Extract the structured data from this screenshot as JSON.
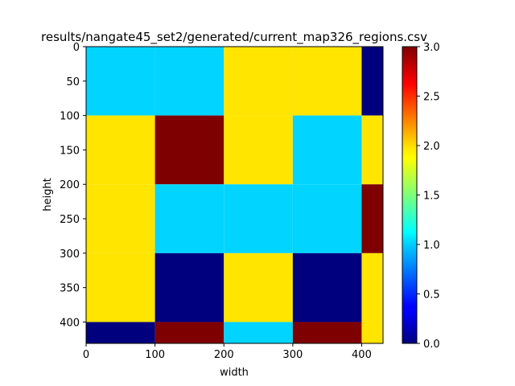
{
  "chart_data": {
    "type": "heatmap",
    "title": "results/nangate45_set2/generated/current_map326_regions.csv",
    "xlabel": "width",
    "ylabel": "height",
    "xlim": [
      0,
      431
    ],
    "ylim": [
      431,
      0
    ],
    "x_ticks": [
      0,
      100,
      200,
      300,
      400
    ],
    "y_ticks": [
      0,
      50,
      100,
      150,
      200,
      250,
      300,
      350,
      400
    ],
    "colormap": "jet",
    "color_range": [
      0,
      3
    ],
    "colorbar_ticks": [
      "0.0",
      "0.5",
      "1.0",
      "1.5",
      "2.0",
      "2.5",
      "3.0"
    ],
    "col_edges": [
      0,
      100,
      200,
      300,
      400,
      431
    ],
    "row_edges": [
      0,
      100,
      200,
      300,
      400,
      431
    ],
    "values": [
      [
        1,
        1,
        2,
        2,
        0
      ],
      [
        2,
        3,
        2,
        1,
        2
      ],
      [
        2,
        1,
        1,
        1,
        3
      ],
      [
        2,
        0,
        2,
        0,
        2
      ],
      [
        0,
        3,
        1,
        3,
        2
      ]
    ],
    "value_colors": {
      "0": "#00007f",
      "1": "#00d4ff",
      "2": "#ffe500",
      "3": "#7f0000"
    },
    "colorbar_stops": [
      {
        "offset": 0.0,
        "color": "#00007f"
      },
      {
        "offset": 0.11,
        "color": "#0000ff"
      },
      {
        "offset": 0.125,
        "color": "#0000ff"
      },
      {
        "offset": 0.34,
        "color": "#00d4ff"
      },
      {
        "offset": 0.375,
        "color": "#00ffff"
      },
      {
        "offset": 0.5,
        "color": "#7dff7a"
      },
      {
        "offset": 0.625,
        "color": "#ffff00"
      },
      {
        "offset": 0.66,
        "color": "#ffe500"
      },
      {
        "offset": 0.875,
        "color": "#ff0000"
      },
      {
        "offset": 1.0,
        "color": "#7f0000"
      }
    ]
  }
}
